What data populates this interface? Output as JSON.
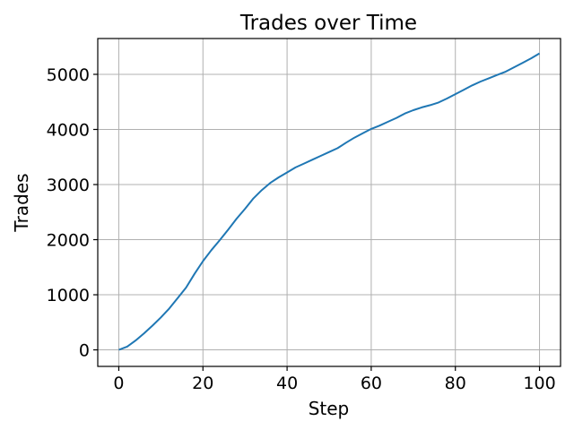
{
  "chart_data": {
    "type": "line",
    "title": "Trades over Time",
    "xlabel": "Step",
    "ylabel": "Trades",
    "xlim": [
      -5,
      105
    ],
    "ylim": [
      -300,
      5650
    ],
    "xticks": [
      0,
      20,
      40,
      60,
      80,
      100
    ],
    "yticks": [
      0,
      1000,
      2000,
      3000,
      4000,
      5000
    ],
    "grid": true,
    "series": [
      {
        "color": "#1f77b4",
        "x": [
          0,
          2,
          4,
          6,
          8,
          10,
          12,
          14,
          16,
          18,
          20,
          22,
          24,
          26,
          28,
          30,
          32,
          34,
          36,
          38,
          40,
          42,
          44,
          46,
          48,
          50,
          52,
          54,
          56,
          58,
          60,
          62,
          64,
          66,
          68,
          70,
          72,
          74,
          76,
          78,
          80,
          82,
          84,
          86,
          88,
          90,
          92,
          94,
          96,
          98,
          100
        ],
        "y": [
          0,
          60,
          170,
          300,
          440,
          590,
          750,
          940,
          1130,
          1380,
          1610,
          1810,
          1990,
          2180,
          2380,
          2560,
          2750,
          2900,
          3030,
          3130,
          3220,
          3310,
          3380,
          3450,
          3520,
          3590,
          3660,
          3760,
          3850,
          3930,
          4010,
          4070,
          4140,
          4210,
          4290,
          4350,
          4400,
          4440,
          4490,
          4560,
          4640,
          4720,
          4800,
          4870,
          4930,
          4990,
          5050,
          5130,
          5210,
          5290,
          5380
        ]
      }
    ]
  }
}
